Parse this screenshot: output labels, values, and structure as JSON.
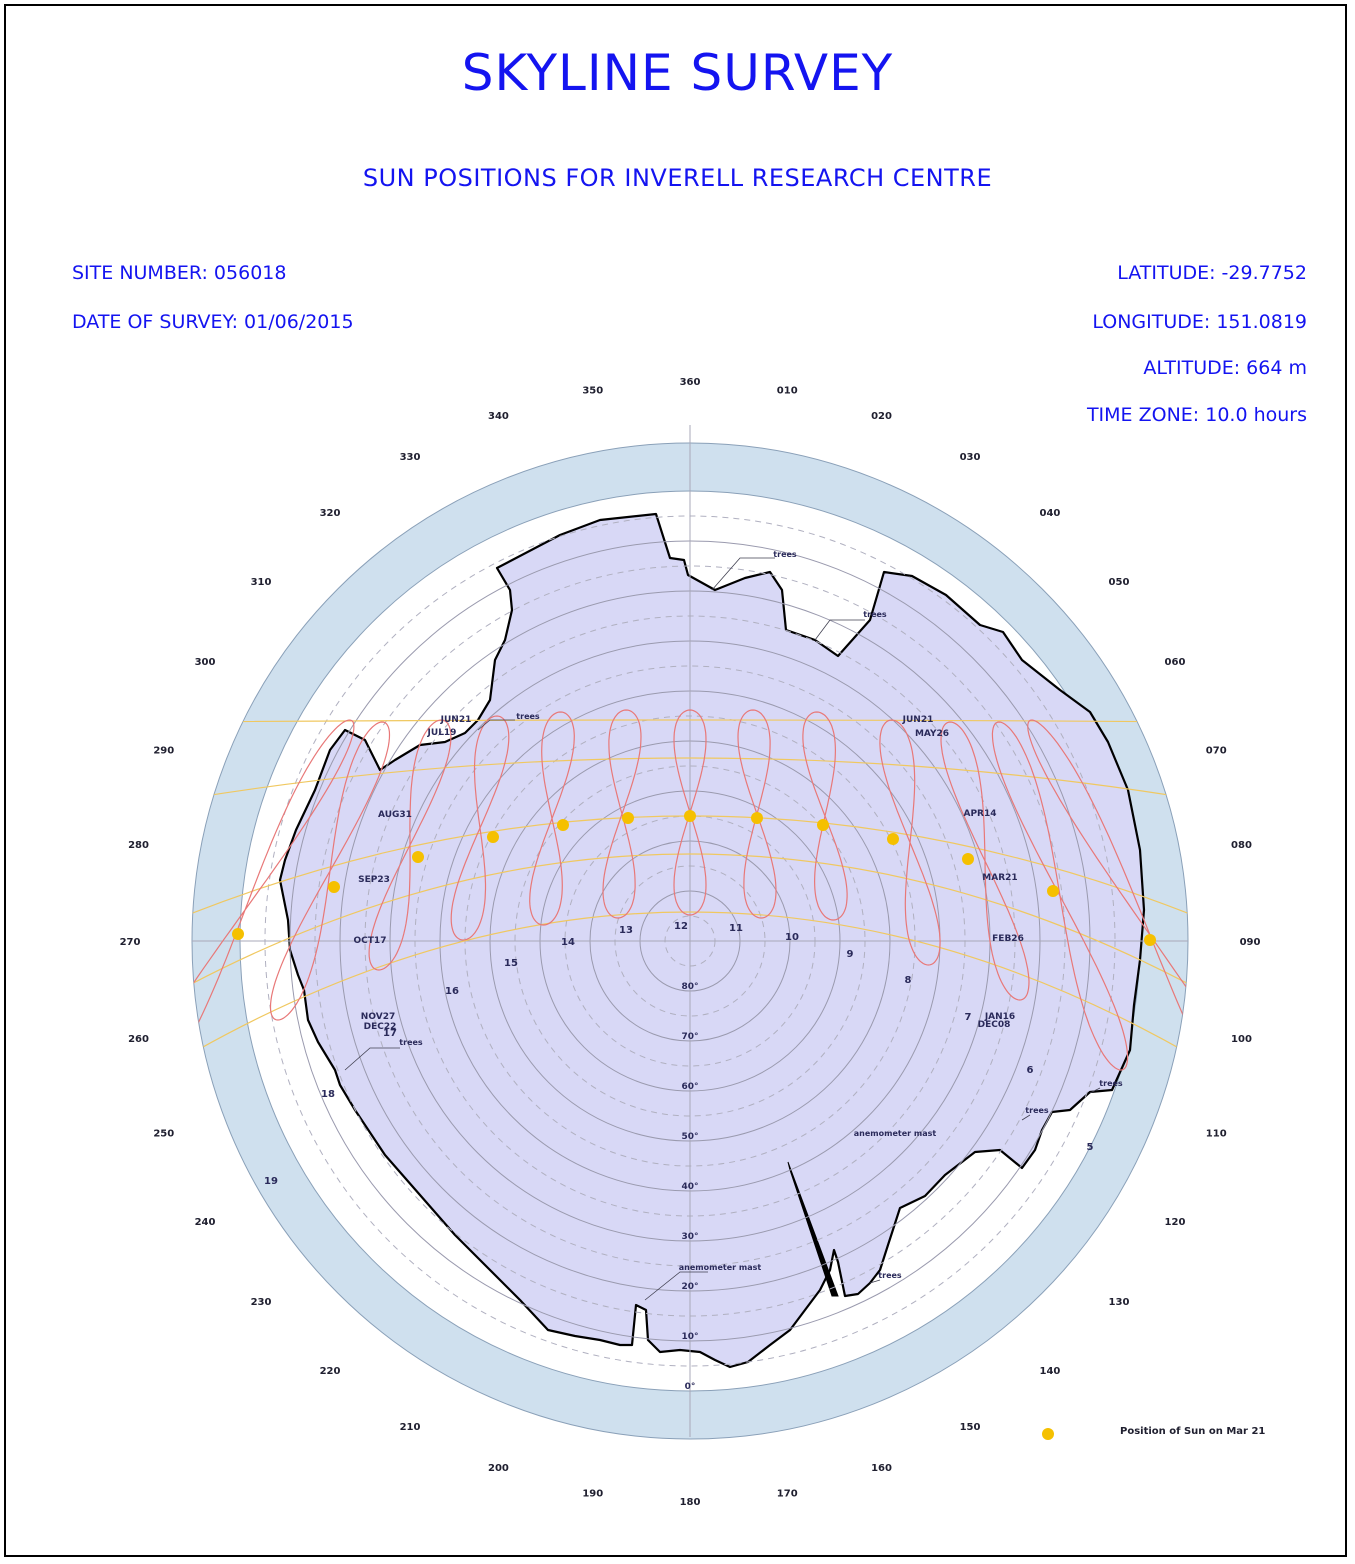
{
  "header": {
    "title": "SKYLINE SURVEY",
    "subtitle": "SUN POSITIONS FOR INVERELL RESEARCH CENTRE"
  },
  "site": {
    "site_number": "SITE NUMBER: 056018",
    "date_of_survey": "DATE OF SURVEY: 01/06/2015",
    "latitude": "LATITUDE: -29.7752",
    "longitude": "LONGITUDE: 151.0819",
    "altitude": "ALTITUDE: 664 m",
    "time_zone": "TIME ZONE: 10.0 hours"
  },
  "polar_chart": {
    "azimuth_labels": [
      "360",
      "010",
      "020",
      "030",
      "040",
      "050",
      "060",
      "070",
      "080",
      "090",
      "100",
      "110",
      "120",
      "130",
      "140",
      "150",
      "160",
      "170",
      "180",
      "190",
      "200",
      "210",
      "220",
      "230",
      "240",
      "250",
      "260",
      "270",
      "280",
      "290",
      "300",
      "310",
      "320",
      "330",
      "340",
      "350"
    ],
    "altitude_labels": [
      "80°",
      "70°",
      "60°",
      "50°",
      "40°",
      "30°",
      "20°",
      "10°",
      "0°"
    ],
    "hour_labels": [
      "5",
      "6",
      "7",
      "8",
      "9",
      "10",
      "11",
      "12",
      "13",
      "14",
      "15",
      "16",
      "17",
      "18",
      "19"
    ],
    "date_labels": [
      "JUN21",
      "JUL19",
      "AUG31",
      "SEP23",
      "OCT17",
      "NOV27",
      "DEC22",
      "JUN21",
      "MAY26",
      "APR14",
      "MAR21",
      "FEB26",
      "JAN16",
      "DEC08"
    ],
    "obstruction_labels": [
      "trees",
      "trees",
      "trees",
      "trees",
      "trees",
      "trees",
      "trees",
      "anemometer mast"
    ],
    "colors": {
      "outer_ring": "#cfe0ee",
      "skyline_fill": "#d8d8f6",
      "analemma": "#e87878",
      "declination_arc": "#f0c860",
      "sun_dot": "#f5c000",
      "heading": "#1414f0"
    }
  },
  "legend": {
    "label": "Position of Sun on Mar 21",
    "icon": "sun-dot"
  }
}
